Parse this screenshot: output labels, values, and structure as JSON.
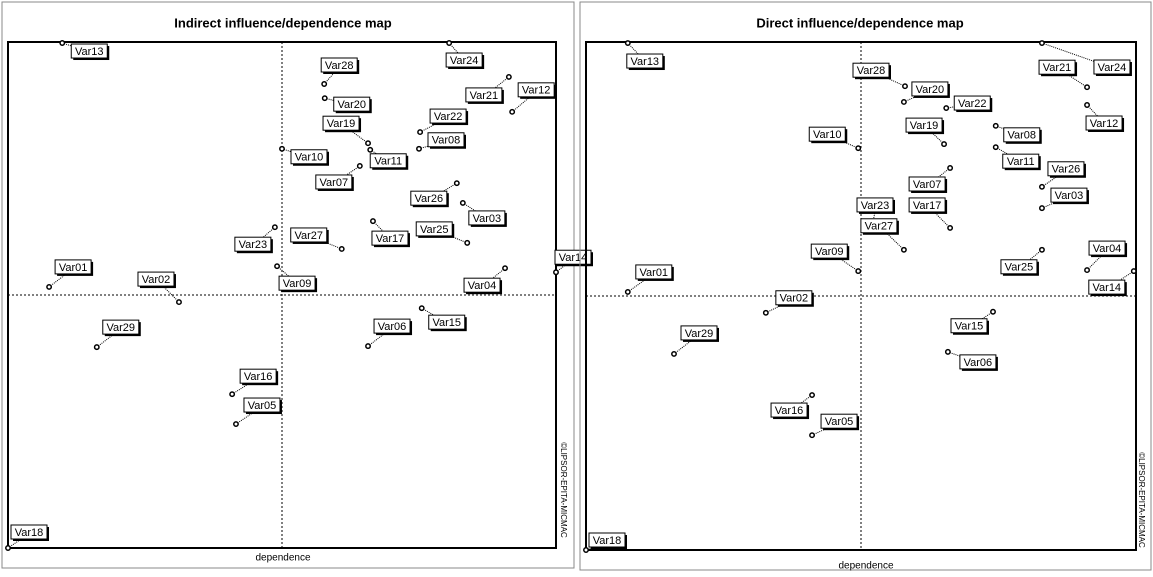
{
  "chart_data": [
    {
      "type": "scatter",
      "title": "Indirect influence/dependence map",
      "xlabel": "dependence",
      "annotation": "©LIPSOR-EPITA-MICMAC",
      "color": "#000000",
      "xlim": [
        0,
        100
      ],
      "ylim": [
        0,
        100
      ],
      "labels": [
        "Var13",
        "Var24",
        "Var28",
        "Var21",
        "Var12",
        "Var20",
        "Var19",
        "Var22",
        "Var08",
        "Var10",
        "Var11",
        "Var07",
        "Var26",
        "Var03",
        "Var25",
        "Var17",
        "Var27",
        "Var23",
        "Var09",
        "Var14",
        "Var04",
        "Var01",
        "Var02",
        "Var29",
        "Var06",
        "Var15",
        "Var16",
        "Var05",
        "Var18"
      ],
      "x": [
        9.9,
        80.5,
        57.7,
        91.4,
        92.0,
        57.8,
        65.7,
        75.2,
        75.0,
        50.0,
        66.1,
        64.2,
        81.9,
        83.0,
        83.8,
        66.6,
        60.9,
        48.7,
        49.1,
        100,
        90.7,
        7.5,
        31.2,
        16.2,
        65.7,
        75.5,
        40.9,
        41.6,
        0
      ],
      "y": [
        99.8,
        99.8,
        91.7,
        93.1,
        86.2,
        88.9,
        80.0,
        82.2,
        78.9,
        78.9,
        78.7,
        75.5,
        72.1,
        68.2,
        60.3,
        64.6,
        59.1,
        63.4,
        55.7,
        54.5,
        55.3,
        51.6,
        48.6,
        39.7,
        39.9,
        47.4,
        30.4,
        24.5,
        0
      ]
    },
    {
      "type": "scatter",
      "title": "Direct influence/dependence map",
      "xlabel": "dependence",
      "annotation": "©LIPSOR-EPITA-MICMAC",
      "color": "#000000",
      "xlim": [
        0,
        100
      ],
      "ylim": [
        0,
        100
      ],
      "labels": [
        "Var13",
        "Var24",
        "Var21",
        "Var28",
        "Var20",
        "Var22",
        "Var12",
        "Var19",
        "Var08",
        "Var10",
        "Var11",
        "Var26",
        "Var03",
        "Var07",
        "Var17",
        "Var23",
        "Var27",
        "Var09",
        "Var25",
        "Var04",
        "Var14",
        "Var01",
        "Var02",
        "Var29",
        "Var15",
        "Var06",
        "Var16",
        "Var05",
        "Var18"
      ],
      "x": [
        7.6,
        82.9,
        91.1,
        58.0,
        57.8,
        65.5,
        91.1,
        65.1,
        74.5,
        49.5,
        74.5,
        82.9,
        82.9,
        66.2,
        66.2,
        52.0,
        57.8,
        49.5,
        82.9,
        91.1,
        99.6,
        7.6,
        32.7,
        16.0,
        74.0,
        65.8,
        41.1,
        41.1,
        0
      ],
      "y": [
        99.8,
        99.8,
        91.1,
        91.3,
        88.2,
        87.0,
        87.6,
        79.9,
        83.5,
        79.1,
        79.3,
        71.5,
        67.3,
        75.2,
        63.4,
        63.4,
        59.1,
        54.9,
        59.1,
        55.1,
        54.9,
        50.8,
        46.7,
        38.6,
        46.9,
        39.0,
        30.5,
        22.6,
        0
      ]
    }
  ]
}
